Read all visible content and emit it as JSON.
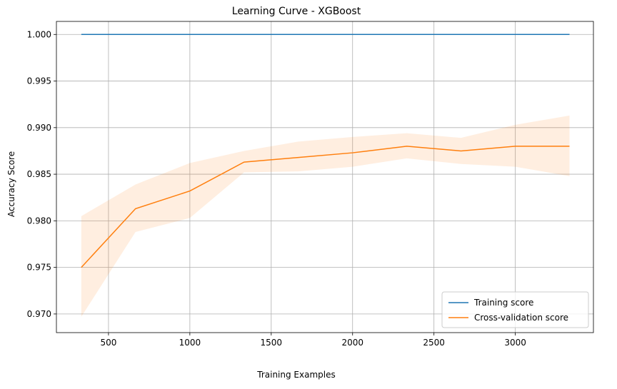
{
  "chart_data": {
    "type": "line",
    "title": "Learning Curve - XGBoost",
    "xlabel": "Training Examples",
    "ylabel": "Accuracy Score",
    "xlim": [
      180,
      3480
    ],
    "ylim": [
      0.968,
      1.0014
    ],
    "xticks": [
      500,
      1000,
      1500,
      2000,
      2500,
      3000
    ],
    "xtick_labels": [
      "500",
      "1000",
      "1500",
      "2000",
      "2500",
      "3000"
    ],
    "yticks": [
      0.97,
      0.975,
      0.98,
      0.985,
      0.99,
      0.995,
      1.0
    ],
    "ytick_labels": [
      "0.970",
      "0.975",
      "0.980",
      "0.985",
      "0.990",
      "0.995",
      "1.000"
    ],
    "grid": true,
    "legend_position": "lower-right",
    "x": [
      333,
      666,
      1000,
      1333,
      1666,
      2000,
      2333,
      2666,
      3000,
      3333
    ],
    "series": [
      {
        "name": "Training score",
        "color": "#1f77b4",
        "values": [
          1.0,
          1.0,
          1.0,
          1.0,
          1.0,
          1.0,
          1.0,
          1.0,
          1.0,
          1.0
        ],
        "band_lower": [
          1.0,
          1.0,
          1.0,
          1.0,
          1.0,
          1.0,
          1.0,
          1.0,
          1.0,
          1.0
        ],
        "band_upper": [
          1.0,
          1.0,
          1.0,
          1.0,
          1.0,
          1.0,
          1.0,
          1.0,
          1.0,
          1.0
        ]
      },
      {
        "name": "Cross-validation score",
        "color": "#ff7f0e",
        "values": [
          0.975,
          0.9813,
          0.9832,
          0.9863,
          0.9868,
          0.9873,
          0.988,
          0.9875,
          0.988,
          0.988
        ],
        "band_lower": [
          0.9697,
          0.9788,
          0.9803,
          0.9852,
          0.9853,
          0.9858,
          0.9867,
          0.9861,
          0.9858,
          0.9848
        ],
        "band_upper": [
          0.9805,
          0.9839,
          0.9862,
          0.9875,
          0.9885,
          0.989,
          0.9894,
          0.9889,
          0.9903,
          0.9913
        ],
        "band_color": "#ff7f0e",
        "band_opacity": 0.13
      }
    ]
  }
}
